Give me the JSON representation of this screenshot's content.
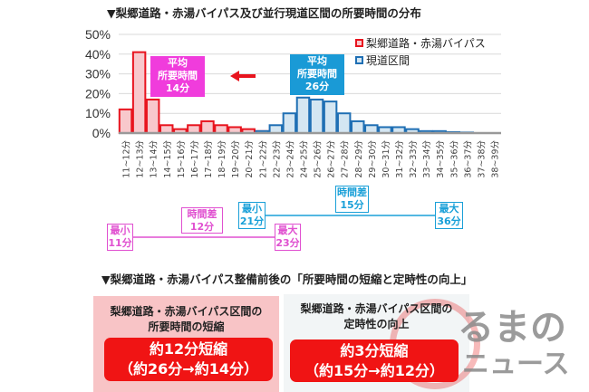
{
  "title": "▼梨郷道路・赤湯バイパス及び並行現道区間の所要時間の分布",
  "chart_data": {
    "type": "bar",
    "title": "梨郷道路・赤湯バイパス及び並行現道区間の所要時間の分布",
    "categories": [
      "11~12分",
      "12~13分",
      "13~14分",
      "14~15分",
      "15~16分",
      "16~17分",
      "17~18分",
      "18~19分",
      "19~20分",
      "20~21分",
      "21~22分",
      "22~23分",
      "23~24分",
      "24~25分",
      "25~26分",
      "26~27分",
      "27~28分",
      "28~29分",
      "29~30分",
      "30~31分",
      "31~32分",
      "32~33分",
      "33~34分",
      "34~35分",
      "35~36分",
      "36~37分",
      "37~38分",
      "38~39分"
    ],
    "series": [
      {
        "name": "梨郷道路・赤湯バイパス",
        "color": "#e8141e",
        "fill": "#f8c8cc",
        "values": [
          12,
          41,
          17,
          4,
          2,
          4,
          6,
          4,
          3,
          2,
          1,
          0.5,
          0.5,
          0,
          0,
          0,
          0,
          0,
          0,
          0,
          0,
          0,
          0,
          0,
          0,
          0,
          0,
          0
        ]
      },
      {
        "name": "現道区間",
        "color": "#1f6fb4",
        "fill": "#d4e6f2",
        "values": [
          0,
          0,
          0,
          0,
          0,
          0,
          0,
          0,
          0,
          0,
          1,
          4,
          10,
          18,
          17,
          16,
          10,
          6,
          4,
          3,
          3,
          2,
          1,
          1,
          0.5,
          0.3,
          0,
          0
        ]
      }
    ],
    "yticks": [
      "0%",
      "10%",
      "20%",
      "30%",
      "40%",
      "50%"
    ],
    "ylim": [
      0,
      50
    ],
    "grid": true,
    "legend": "top-right"
  },
  "means": [
    {
      "lines": [
        "平均",
        "所要時間",
        "14分"
      ],
      "color": "#f03cdc"
    },
    {
      "lines": [
        "平均",
        "所要時間",
        "26分"
      ],
      "color": "#1a9ad6"
    }
  ],
  "ranges": {
    "bypass": {
      "min": [
        "最小",
        "11分"
      ],
      "diff": [
        "時間差",
        "12分"
      ],
      "max": [
        "最大",
        "23分"
      ]
    },
    "current": {
      "min": [
        "最小",
        "21分"
      ],
      "diff": [
        "時間差",
        "15分"
      ],
      "max": [
        "最大",
        "36分"
      ]
    }
  },
  "subtitle": "▼梨郷道路・赤湯バイパス整備前後の「所要時間の短縮と定時性の向上」",
  "panels": [
    {
      "heading": [
        "梨郷道路・赤湯バイパス区間の",
        "所要時間の短縮"
      ],
      "result": [
        "約12分短縮",
        "（約26分→約14分）"
      ]
    },
    {
      "heading": [
        "梨郷道路・赤湯バイパス区間の",
        "定時性の向上"
      ],
      "result": [
        "約3分短縮",
        "（約15分→約12分）"
      ]
    }
  ],
  "watermark": [
    "るまの",
    "ニュース"
  ]
}
